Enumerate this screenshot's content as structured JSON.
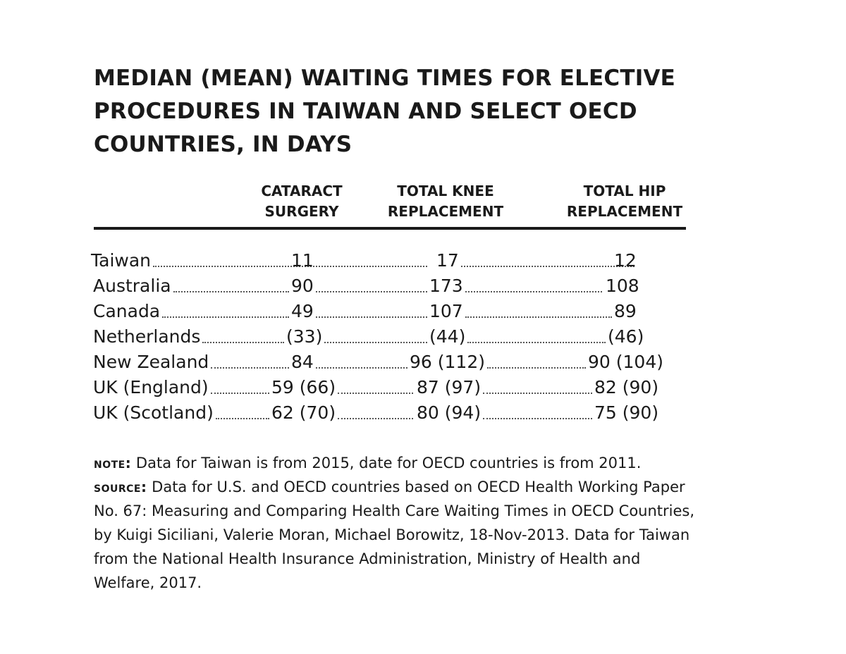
{
  "title": "MEDIAN (MEAN) WAITING TIMES FOR ELECTIVE PROCEDURES IN TAIWAN AND SELECT OECD COUNTRIES, IN DAYS",
  "columns": [
    {
      "line1": "CATARACT",
      "line2": "SURGERY"
    },
    {
      "line1": "TOTAL KNEE",
      "line2": "REPLACEMENT"
    },
    {
      "line1": "TOTAL HIP",
      "line2": "REPLACEMENT"
    }
  ],
  "rows": [
    {
      "country": "Taiwan",
      "cataract": "11",
      "knee": "17",
      "hip": "12"
    },
    {
      "country": "Australia",
      "cataract": "90",
      "knee": "173",
      "hip": "108"
    },
    {
      "country": "Canada",
      "cataract": "49",
      "knee": "107",
      "hip": "89"
    },
    {
      "country": "Netherlands",
      "cataract": "(33)",
      "knee": "(44)",
      "hip": "(46)"
    },
    {
      "country": "New Zealand",
      "cataract": "84",
      "knee": "96 (112)",
      "hip": "90 (104)"
    },
    {
      "country": "UK (England)",
      "cataract": "59 (66)",
      "knee": "87 (97)",
      "hip": "82 (90)"
    },
    {
      "country": "UK (Scotland)",
      "cataract": "62 (70)",
      "knee": "80 (94)",
      "hip": "75 (90)"
    }
  ],
  "note": {
    "label": "note:",
    "text": "Data for Taiwan is from 2015, date for OECD countries is from 2011."
  },
  "source": {
    "label": "source:",
    "text": "Data for U.S. and OECD countries based on OECD Health Working Paper No. 67: Measuring and Comparing Health Care Waiting Times in OECD Countries, by Kuigi Siciliani, Valerie Moran, Michael Borowitz, 18-Nov-2013. Data for Taiwan from the National Health Insurance Administration, Ministry of Health and Welfare, 2017."
  }
}
